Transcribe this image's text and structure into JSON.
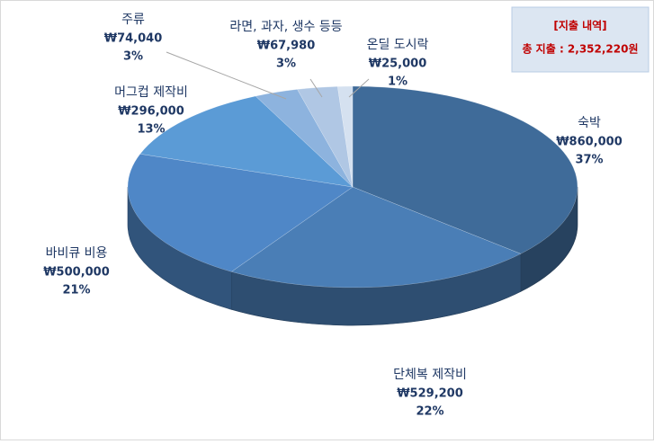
{
  "chart_data": {
    "type": "pie",
    "categories": [
      "숙박",
      "단체복 제작비",
      "바비큐 비용",
      "머그컵 제작비",
      "주류",
      "라면, 과자, 생수 등등",
      "온딜 도시락"
    ],
    "values": [
      860000,
      529200,
      500000,
      296000,
      74040,
      67980,
      25000
    ],
    "value_labels": [
      "₩860,000",
      "₩529,200",
      "₩500,000",
      "₩296,000",
      "₩74,040",
      "₩67,980",
      "₩25,000"
    ],
    "percent_labels": [
      "37%",
      "22%",
      "21%",
      "13%",
      "3%",
      "3%",
      "1%"
    ],
    "colors": [
      "#3f6b99",
      "#4a7eb6",
      "#4f87c7",
      "#5b9bd6",
      "#8db3de",
      "#b0c7e4",
      "#d5e1f0"
    ],
    "annotations": [
      "[지출 내역]",
      "총 지출 : 2,352,220원"
    ]
  }
}
